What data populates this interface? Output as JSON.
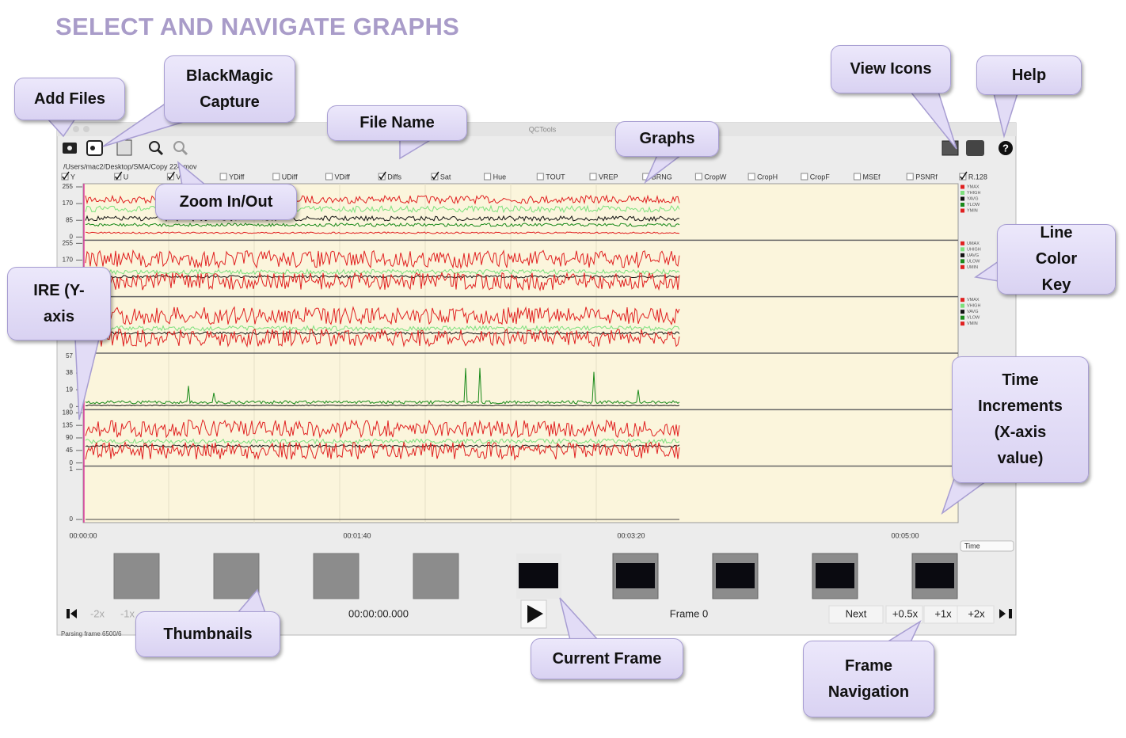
{
  "title": "SELECT AND NAVIGATE GRAPHS",
  "window": {
    "title": "QCTools",
    "path": "/Users/mac2/Desktop/SMA/Copy 224.mov",
    "checkboxes": [
      {
        "label": "Y",
        "checked": true
      },
      {
        "label": "U",
        "checked": true
      },
      {
        "label": "V",
        "checked": true
      },
      {
        "label": "YDiff",
        "checked": false
      },
      {
        "label": "UDiff",
        "checked": false
      },
      {
        "label": "VDiff",
        "checked": false
      },
      {
        "label": "Diffs",
        "checked": true
      },
      {
        "label": "Sat",
        "checked": true
      },
      {
        "label": "Hue",
        "checked": false
      },
      {
        "label": "TOUT",
        "checked": false
      },
      {
        "label": "VREP",
        "checked": false
      },
      {
        "label": "BRNG",
        "checked": false
      },
      {
        "label": "CropW",
        "checked": false
      },
      {
        "label": "CropH",
        "checked": false
      },
      {
        "label": "CropF",
        "checked": false
      },
      {
        "label": "MSEf",
        "checked": false
      },
      {
        "label": "PSNRf",
        "checked": false
      },
      {
        "label": "R.128",
        "checked": true
      }
    ],
    "y_ticks": [
      [
        "255",
        "170",
        "85",
        "0"
      ],
      [
        "255",
        "170"
      ],
      [],
      [
        "57",
        "38",
        "19",
        "0"
      ],
      [
        "180",
        "135",
        "90",
        "45",
        "0"
      ],
      [
        "1",
        "0"
      ]
    ],
    "key_colors": [
      "#e02020",
      "#7de07d",
      "#111111",
      "#1a8a1a",
      "#e02020"
    ],
    "legend": [
      [
        "YMAX",
        "YHIGH",
        "YAVG",
        "YLOW",
        "YMIN"
      ],
      [
        "UMAX",
        "UHIGH",
        "UAVG",
        "ULOW",
        "UMIN"
      ],
      [
        "VMAX",
        "VHIGH",
        "VAVG",
        "VLOW",
        "VMIN"
      ]
    ],
    "time_labels": [
      "00:00:00",
      "00:01:40",
      "00:03:20",
      "00:05:00"
    ],
    "time_select": "Time",
    "nav": {
      "left": [
        "-2x",
        "-1x"
      ],
      "timecode": "00:00:00.000",
      "frame": "Frame 0",
      "right": [
        "Next",
        "+0.5x",
        "+1x",
        "+2x"
      ]
    },
    "status": "Parsing frame 6500/6"
  },
  "callouts": [
    "Add Files",
    "BlackMagic Capture",
    "File Name",
    "Graphs",
    "Zoom In/Out",
    "View Icons",
    "Help",
    "Line Color Key",
    "IRE (Y-axis",
    "Time Increments (X-axis value)",
    "Thumbnails",
    "Current Frame",
    "Frame Navigation"
  ]
}
